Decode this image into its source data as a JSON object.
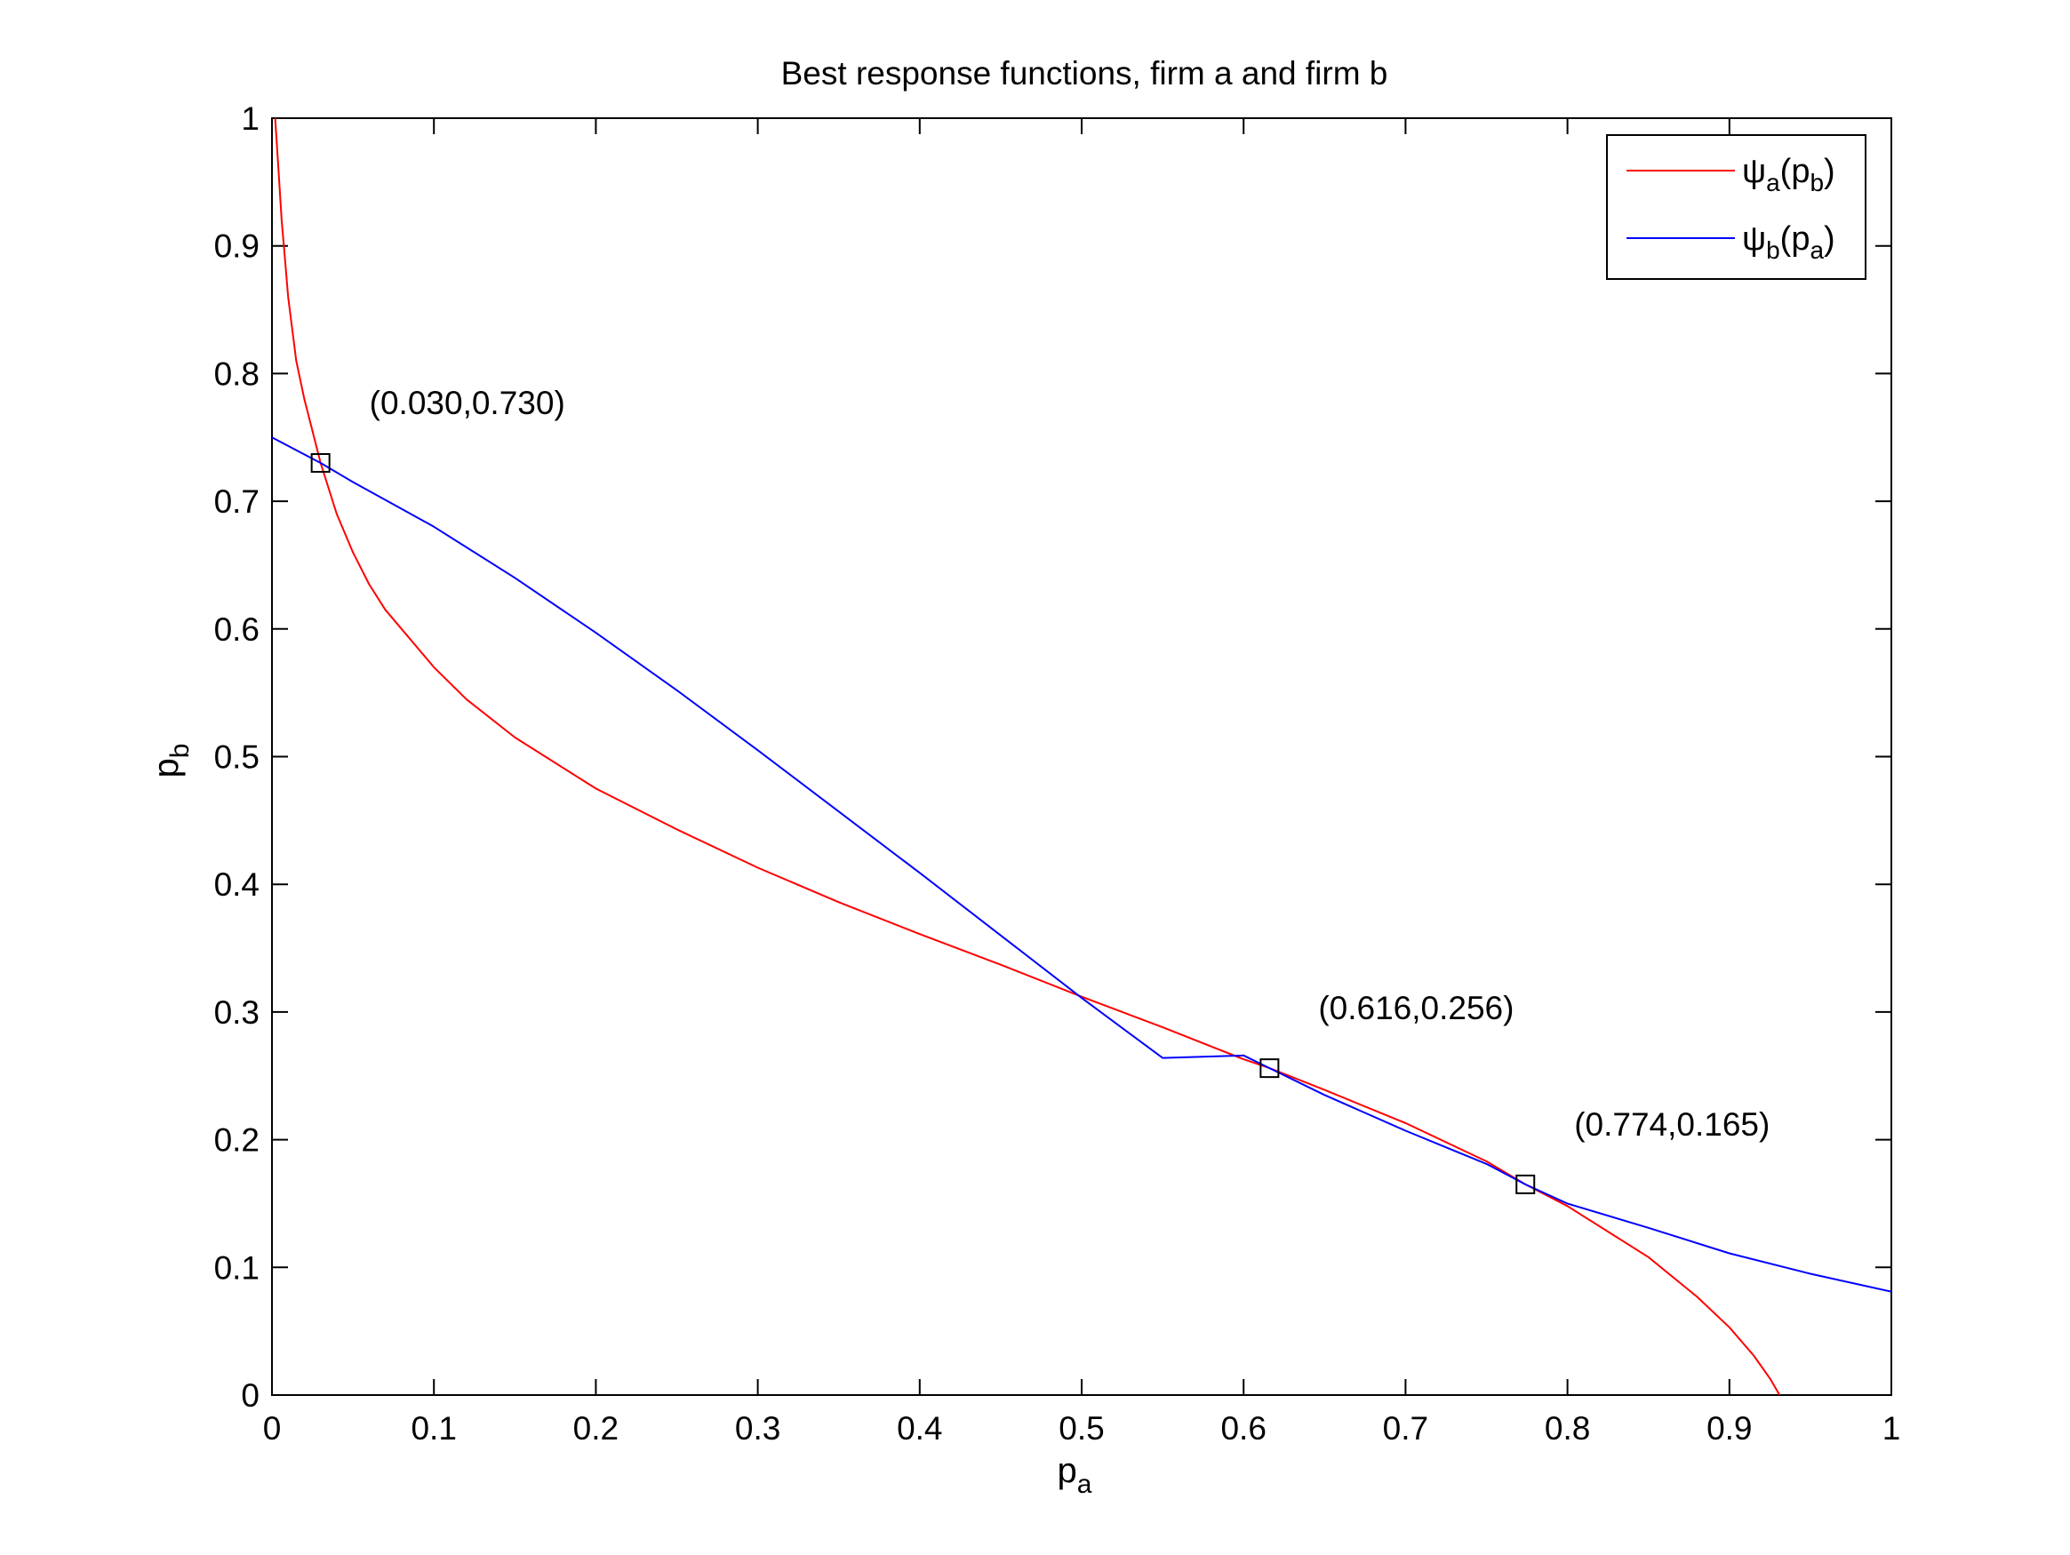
{
  "chart_data": {
    "type": "line",
    "title": "Best response functions, firm a and firm b",
    "xlabel": {
      "base": "p",
      "sub": "a"
    },
    "ylabel": {
      "base": "p",
      "sub": "b"
    },
    "xlim": [
      0,
      1
    ],
    "ylim": [
      0,
      1
    ],
    "xticks": [
      0,
      0.1,
      0.2,
      0.3,
      0.4,
      0.5,
      0.6,
      0.7,
      0.8,
      0.9,
      1
    ],
    "xtick_labels": [
      "0",
      "0.1",
      "0.2",
      "0.3",
      "0.4",
      "0.5",
      "0.6",
      "0.7",
      "0.8",
      "0.9",
      "1"
    ],
    "yticks": [
      0,
      0.1,
      0.2,
      0.3,
      0.4,
      0.5,
      0.6,
      0.7,
      0.8,
      0.9,
      1
    ],
    "ytick_labels": [
      "0",
      "0.1",
      "0.2",
      "0.3",
      "0.4",
      "0.5",
      "0.6",
      "0.7",
      "0.8",
      "0.9",
      "1"
    ],
    "grid": false,
    "legend_position": "top-right",
    "series": [
      {
        "name": "ψa(pb)",
        "legend": {
          "psi": "ψ",
          "psi_sub": "a",
          "open": "(",
          "arg": "p",
          "arg_sub": "b",
          "close": ")"
        },
        "color": "#ff0000",
        "points": [
          [
            0.002,
            1.0
          ],
          [
            0.004,
            0.96
          ],
          [
            0.006,
            0.92
          ],
          [
            0.008,
            0.89
          ],
          [
            0.01,
            0.86
          ],
          [
            0.015,
            0.81
          ],
          [
            0.02,
            0.78
          ],
          [
            0.025,
            0.755
          ],
          [
            0.03,
            0.73
          ],
          [
            0.04,
            0.69
          ],
          [
            0.05,
            0.66
          ],
          [
            0.06,
            0.635
          ],
          [
            0.07,
            0.615
          ],
          [
            0.08,
            0.6
          ],
          [
            0.1,
            0.57
          ],
          [
            0.12,
            0.545
          ],
          [
            0.15,
            0.515
          ],
          [
            0.2,
            0.475
          ],
          [
            0.25,
            0.443
          ],
          [
            0.3,
            0.413
          ],
          [
            0.35,
            0.386
          ],
          [
            0.4,
            0.361
          ],
          [
            0.45,
            0.337
          ],
          [
            0.5,
            0.312
          ],
          [
            0.55,
            0.288
          ],
          [
            0.6,
            0.263
          ],
          [
            0.616,
            0.256
          ],
          [
            0.65,
            0.239
          ],
          [
            0.7,
            0.213
          ],
          [
            0.75,
            0.183
          ],
          [
            0.774,
            0.165
          ],
          [
            0.8,
            0.148
          ],
          [
            0.85,
            0.108
          ],
          [
            0.88,
            0.077
          ],
          [
            0.9,
            0.053
          ],
          [
            0.915,
            0.031
          ],
          [
            0.925,
            0.013
          ],
          [
            0.931,
            0.0
          ]
        ]
      },
      {
        "name": "ψb(pa)",
        "legend": {
          "psi": "ψ",
          "psi_sub": "b",
          "open": "(",
          "arg": "p",
          "arg_sub": "a",
          "close": ")"
        },
        "color": "#0000ff",
        "points": [
          [
            0.0,
            0.75
          ],
          [
            0.03,
            0.73
          ],
          [
            0.05,
            0.715
          ],
          [
            0.1,
            0.68
          ],
          [
            0.15,
            0.64
          ],
          [
            0.2,
            0.597
          ],
          [
            0.25,
            0.552
          ],
          [
            0.3,
            0.505
          ],
          [
            0.35,
            0.457
          ],
          [
            0.4,
            0.409
          ],
          [
            0.45,
            0.36
          ],
          [
            0.5,
            0.311
          ],
          [
            0.55,
            0.264
          ],
          [
            0.6,
            0.266
          ],
          [
            0.616,
            0.256
          ],
          [
            0.65,
            0.235
          ],
          [
            0.7,
            0.207
          ],
          [
            0.75,
            0.181
          ],
          [
            0.774,
            0.165
          ],
          [
            0.8,
            0.15
          ],
          [
            0.85,
            0.131
          ],
          [
            0.9,
            0.111
          ],
          [
            0.95,
            0.095
          ],
          [
            1.0,
            0.081
          ]
        ]
      }
    ],
    "markers": [
      {
        "x": 0.03,
        "y": 0.73,
        "label": "(0.030,0.730)"
      },
      {
        "x": 0.616,
        "y": 0.256,
        "label": "(0.616,0.256)"
      },
      {
        "x": 0.774,
        "y": 0.165,
        "label": "(0.774,0.165)"
      }
    ]
  }
}
